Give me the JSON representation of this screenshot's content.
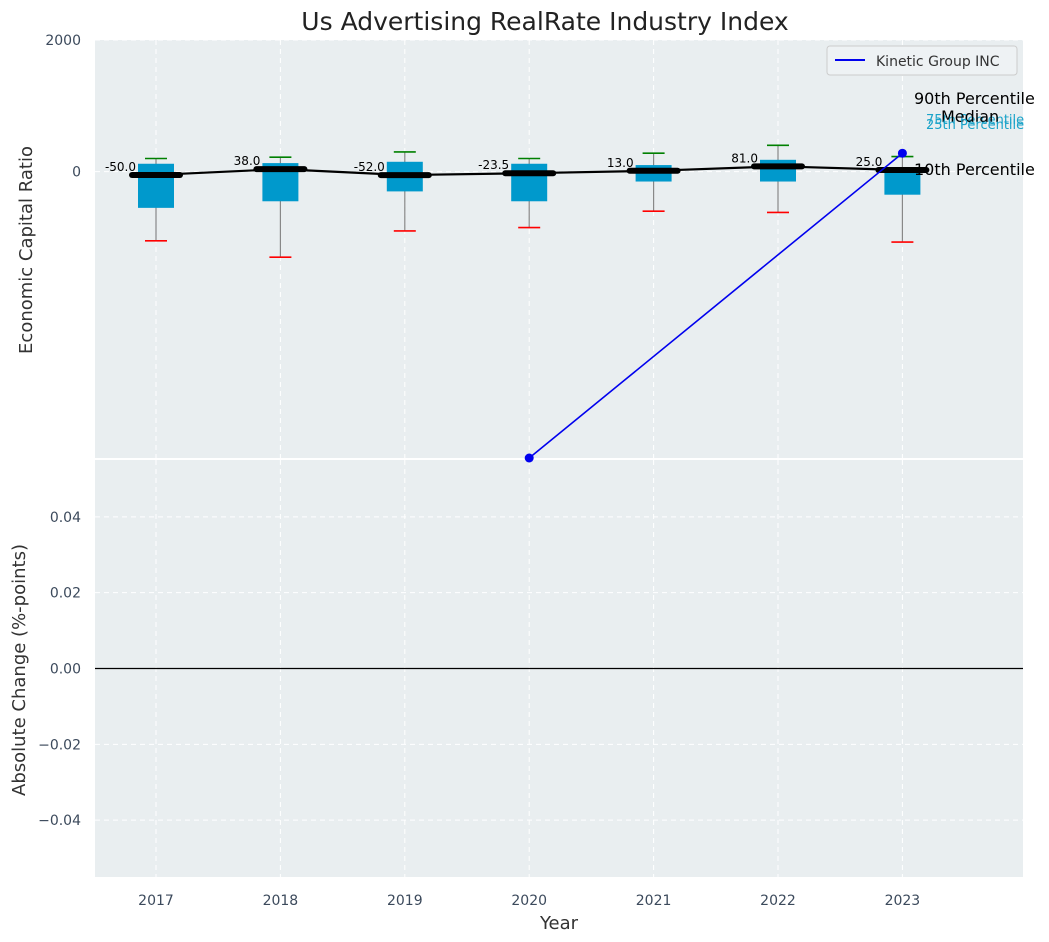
{
  "chart_data": [
    {
      "type": "box",
      "title": "Us Advertising RealRate Industry Index",
      "xlabel": "",
      "ylabel": "Economic Capital Ratio",
      "ylim": [
        -4350,
        2000
      ],
      "yticks": [
        2000,
        0
      ],
      "categories": [
        "2017",
        "2018",
        "2019",
        "2020",
        "2021",
        "2022",
        "2023"
      ],
      "percentiles": {
        "p90": [
          200,
          220,
          300,
          200,
          280,
          400,
          230
        ],
        "p75": [
          120,
          130,
          150,
          120,
          100,
          180,
          60
        ],
        "median": [
          -50,
          38,
          -52,
          -23.5,
          13,
          81,
          25
        ],
        "p25": [
          -550,
          -450,
          -300,
          -450,
          -150,
          -150,
          -350
        ],
        "p10": [
          -1050,
          -1300,
          -900,
          -850,
          -600,
          -620,
          -1070
        ]
      },
      "median_labels": [
        "-50.0",
        "38.0",
        "-52.0",
        "-23.5",
        "13.0",
        "81.0",
        "25.0"
      ],
      "series": [
        {
          "name": "Kinetic Group INC",
          "x": [
            "2020",
            "2023"
          ],
          "values": [
            -4350,
            280
          ],
          "color": "#0000ee"
        }
      ],
      "legend": {
        "position": "top-right",
        "entries": [
          "Kinetic Group INC"
        ]
      },
      "annotations": [
        "90th Percentile",
        "75th Percentile",
        "Median",
        "25th Percentile",
        "10th Percentile"
      ],
      "grid": true
    },
    {
      "type": "line",
      "xlabel": "Year",
      "ylabel": "Absolute Change (%-points)",
      "categories": [
        "2017",
        "2018",
        "2019",
        "2020",
        "2021",
        "2022",
        "2023"
      ],
      "ylim": [
        -0.055,
        0.055
      ],
      "yticks": [
        0.04,
        0.02,
        0.0,
        -0.02,
        -0.04
      ],
      "ytick_labels": [
        "0.04",
        "0.02",
        "0.00",
        "−0.02",
        "−0.04"
      ],
      "series": [],
      "reference_line": 0,
      "grid": true
    }
  ],
  "colors": {
    "plot_bg": "#e9eef0",
    "box": "#0099cc",
    "whisker_line": "#888888",
    "p90_cap": "#008000",
    "p10_cap": "#ff0000",
    "median_line": "#000000",
    "company": "#0000ee",
    "pct_small": "#1aa3c9"
  }
}
